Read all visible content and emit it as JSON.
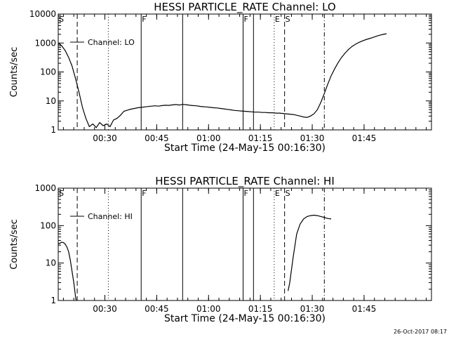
{
  "chart_data": [
    {
      "type": "line",
      "title": "HESSI PARTICLE_RATE Channel: LO",
      "xlabel": "Start Time (24-May-15 00:16:30)",
      "ylabel": "Counts/sec",
      "yscale": "log",
      "ylim": [
        1,
        10000
      ],
      "xlim_minutes": [
        0,
        108
      ],
      "xticks": [
        {
          "t": 13.5,
          "label": "00:30"
        },
        {
          "t": 28.5,
          "label": "00:45"
        },
        {
          "t": 43.5,
          "label": "01:00"
        },
        {
          "t": 58.5,
          "label": "01:15"
        },
        {
          "t": 73.5,
          "label": "01:30"
        },
        {
          "t": 88.5,
          "label": "01:45"
        }
      ],
      "yticks": [
        {
          "v": 1,
          "label": "1"
        },
        {
          "v": 10,
          "label": "10"
        },
        {
          "v": 100,
          "label": "100"
        },
        {
          "v": 1000,
          "label": "1000"
        },
        {
          "v": 10000,
          "label": "10000"
        }
      ],
      "legend": {
        "label": "Channel: LO",
        "position": "top-left"
      },
      "series": [
        {
          "name": "Channel: LO",
          "points": [
            [
              0,
              1000
            ],
            [
              1,
              800
            ],
            [
              2,
              550
            ],
            [
              3,
              320
            ],
            [
              4,
              160
            ],
            [
              5,
              60
            ],
            [
              6,
              20
            ],
            [
              7,
              6
            ],
            [
              8,
              2.5
            ],
            [
              9,
              1.3
            ],
            [
              10,
              1.6
            ],
            [
              11,
              1.2
            ],
            [
              12,
              1.8
            ],
            [
              13,
              1.4
            ],
            [
              14,
              1.6
            ],
            [
              15,
              1.3
            ],
            [
              16,
              2.2
            ],
            [
              17,
              2.5
            ],
            [
              18,
              3.2
            ],
            [
              19,
              4.4
            ],
            [
              20,
              4.8
            ],
            [
              21,
              5.2
            ],
            [
              22,
              5.5
            ],
            [
              23,
              5.8
            ],
            [
              24,
              6.0
            ],
            [
              25,
              6.2
            ],
            [
              26,
              6.4
            ],
            [
              27,
              6.6
            ],
            [
              28,
              6.8
            ],
            [
              29,
              6.6
            ],
            [
              30,
              6.9
            ],
            [
              31,
              7.1
            ],
            [
              32,
              7.0
            ],
            [
              33,
              7.3
            ],
            [
              34,
              7.5
            ],
            [
              35,
              7.2
            ],
            [
              36,
              7.6
            ],
            [
              37,
              7.4
            ],
            [
              38,
              7.1
            ],
            [
              39,
              6.9
            ],
            [
              40,
              6.8
            ],
            [
              41,
              6.5
            ],
            [
              42,
              6.3
            ],
            [
              43,
              6.2
            ],
            [
              44,
              6.0
            ],
            [
              45,
              5.8
            ],
            [
              46,
              5.7
            ],
            [
              47,
              5.5
            ],
            [
              48,
              5.3
            ],
            [
              49,
              5.1
            ],
            [
              50,
              4.9
            ],
            [
              51,
              4.7
            ],
            [
              52,
              4.6
            ],
            [
              53,
              4.5
            ],
            [
              54,
              4.4
            ],
            [
              55,
              4.3
            ],
            [
              56,
              4.2
            ],
            [
              57,
              4.1
            ],
            [
              58,
              4.1
            ],
            [
              59,
              4.0
            ],
            [
              60,
              4.0
            ],
            [
              61,
              3.9
            ],
            [
              62,
              3.9
            ],
            [
              63,
              3.8
            ],
            [
              64,
              3.8
            ],
            [
              65,
              3.7
            ],
            [
              66,
              3.6
            ],
            [
              67,
              3.5
            ],
            [
              68,
              3.4
            ],
            [
              69,
              3.2
            ],
            [
              70,
              3.0
            ],
            [
              71,
              2.8
            ],
            [
              72,
              2.7
            ],
            [
              73,
              3.0
            ],
            [
              74,
              3.6
            ],
            [
              75,
              5.0
            ],
            [
              76,
              9.0
            ],
            [
              77,
              18
            ],
            [
              78,
              38
            ],
            [
              79,
              75
            ],
            [
              80,
              130
            ],
            [
              81,
              210
            ],
            [
              82,
              320
            ],
            [
              83,
              450
            ],
            [
              84,
              600
            ],
            [
              85,
              760
            ],
            [
              86,
              900
            ],
            [
              87,
              1050
            ],
            [
              88,
              1180
            ],
            [
              89,
              1300
            ],
            [
              90,
              1420
            ],
            [
              91,
              1550
            ],
            [
              92,
              1700
            ],
            [
              93,
              1850
            ],
            [
              94,
              1980
            ],
            [
              95,
              2100
            ]
          ]
        }
      ],
      "markers": [
        {
          "t": 0,
          "label": "S",
          "style": "dash-dot"
        },
        {
          "t": 5.5,
          "label": "",
          "style": "dashed"
        },
        {
          "t": 14.5,
          "label": "",
          "style": "dotted"
        },
        {
          "t": 24,
          "label": "F",
          "style": "solid"
        },
        {
          "t": 36,
          "label": "",
          "style": "solid"
        },
        {
          "t": 53.5,
          "label": "F",
          "style": "solid"
        },
        {
          "t": 56.5,
          "label": "",
          "style": "solid"
        },
        {
          "t": 62.5,
          "label": "E",
          "style": "dotted"
        },
        {
          "t": 65.5,
          "label": "S",
          "style": "dashed"
        },
        {
          "t": 77,
          "label": "",
          "style": "dash-dot"
        }
      ]
    },
    {
      "type": "line",
      "title": "HESSI PARTICLE_RATE Channel: HI",
      "xlabel": "Start Time (24-May-15 00:16:30)",
      "ylabel": "Counts/sec",
      "yscale": "log",
      "ylim": [
        1,
        1000
      ],
      "xlim_minutes": [
        0,
        108
      ],
      "xticks": [
        {
          "t": 13.5,
          "label": "00:30"
        },
        {
          "t": 28.5,
          "label": "00:45"
        },
        {
          "t": 43.5,
          "label": "01:00"
        },
        {
          "t": 58.5,
          "label": "01:15"
        },
        {
          "t": 73.5,
          "label": "01:30"
        },
        {
          "t": 88.5,
          "label": "01:45"
        }
      ],
      "yticks": [
        {
          "v": 1,
          "label": "1"
        },
        {
          "v": 10,
          "label": "10"
        },
        {
          "v": 100,
          "label": "100"
        },
        {
          "v": 1000,
          "label": "1000"
        }
      ],
      "legend": {
        "label": "Channel: HI",
        "position": "top-left"
      },
      "series": [
        {
          "name": "Channel: HI",
          "segments": [
            [
              [
                0,
                32
              ],
              [
                0.5,
                34
              ],
              [
                1,
                36
              ],
              [
                1.5,
                35
              ],
              [
                2,
                32
              ],
              [
                2.5,
                27
              ],
              [
                3,
                20
              ],
              [
                3.5,
                12
              ],
              [
                4,
                6
              ],
              [
                4.5,
                3
              ],
              [
                5,
                1.3
              ],
              [
                5.2,
                1.0
              ]
            ],
            [
              [
                66.5,
                1.8
              ],
              [
                67,
                3
              ],
              [
                68,
                15
              ],
              [
                69,
                60
              ],
              [
                70,
                110
              ],
              [
                71,
                150
              ],
              [
                72,
                175
              ],
              [
                73,
                185
              ],
              [
                74,
                190
              ],
              [
                75,
                185
              ],
              [
                76,
                175
              ],
              [
                77,
                165
              ],
              [
                78,
                155
              ],
              [
                79,
                150
              ]
            ]
          ]
        }
      ],
      "markers": [
        {
          "t": 0,
          "label": "S",
          "style": "dash-dot"
        },
        {
          "t": 5.5,
          "label": "",
          "style": "dashed"
        },
        {
          "t": 14.5,
          "label": "",
          "style": "dotted"
        },
        {
          "t": 24,
          "label": "F",
          "style": "solid"
        },
        {
          "t": 36,
          "label": "",
          "style": "solid"
        },
        {
          "t": 53.5,
          "label": "F",
          "style": "solid"
        },
        {
          "t": 56.5,
          "label": "",
          "style": "solid"
        },
        {
          "t": 62.5,
          "label": "E",
          "style": "dotted"
        },
        {
          "t": 65.5,
          "label": "S",
          "style": "dashed"
        },
        {
          "t": 77,
          "label": "",
          "style": "dash-dot"
        }
      ]
    }
  ],
  "footer": {
    "timestamp": "26-Oct-2017 08:17"
  }
}
